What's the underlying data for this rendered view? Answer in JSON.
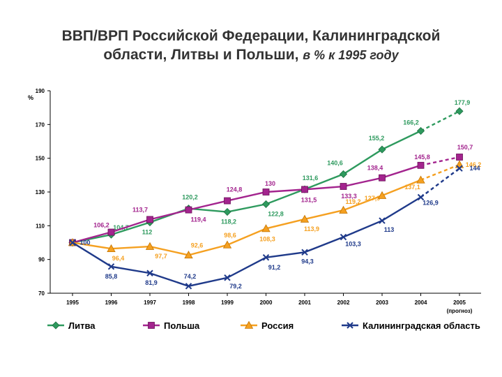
{
  "chart_data": {
    "type": "line",
    "title_line1": "ВВП/ВРП Российской Федерации, Калининградской",
    "title_line2": "области, Литвы и Польши,",
    "title_unit": "в % к 1995 году",
    "ylabel": "%",
    "ylim": [
      70,
      190
    ],
    "yticks": [
      70,
      90,
      110,
      130,
      150,
      170,
      190
    ],
    "categories": [
      "1995",
      "1996",
      "1997",
      "1998",
      "1999",
      "2000",
      "2001",
      "2002",
      "2003",
      "2004",
      "2005"
    ],
    "forecast_note": "(прогноз)",
    "grid": false,
    "legend_position": "bottom",
    "series": [
      {
        "name": "Литва",
        "color": "#2e9a5e",
        "marker": "diamond",
        "values": [
          100,
          104.7,
          112,
          120.2,
          118.2,
          122.8,
          131.6,
          140.6,
          155.2,
          166.2,
          177.9
        ],
        "labels": [
          "",
          "104,7",
          "112",
          "120,2",
          "118,2",
          "122,8",
          "131,6",
          "140,6",
          "155,2",
          "166,2",
          "177,9"
        ]
      },
      {
        "name": "Польша",
        "color": "#a3248e",
        "marker": "square",
        "values": [
          100,
          106.2,
          113.7,
          119.4,
          124.8,
          130,
          131.5,
          133.3,
          138.4,
          145.8,
          150.7
        ],
        "labels": [
          "",
          "106,2",
          "113,7",
          "119,4",
          "124,8",
          "130",
          "131,5",
          "133,3",
          "138,4",
          "145,8",
          "150,7"
        ]
      },
      {
        "name": "Россия",
        "color": "#f5a020",
        "marker": "triangle",
        "values": [
          100,
          96.4,
          97.7,
          92.6,
          98.6,
          108.3,
          113.9,
          119.2,
          127.9,
          137.1,
          146.2
        ],
        "labels": [
          "",
          "96,4",
          "97,7",
          "92,6",
          "98,6",
          "108,3",
          "113,9",
          "119,2",
          "127,9",
          "137,1",
          "146,2"
        ]
      },
      {
        "name": "Калининградская область",
        "color": "#1f3a8a",
        "marker": "x",
        "values": [
          100,
          85.8,
          81.9,
          74.2,
          79.2,
          91.2,
          94.3,
          103.3,
          113,
          126.9,
          144
        ],
        "labels": [
          "100",
          "85,8",
          "81,9",
          "74,2",
          "79,2",
          "91,2",
          "94,3",
          "103,3",
          "113",
          "126,9",
          "144"
        ]
      }
    ]
  }
}
